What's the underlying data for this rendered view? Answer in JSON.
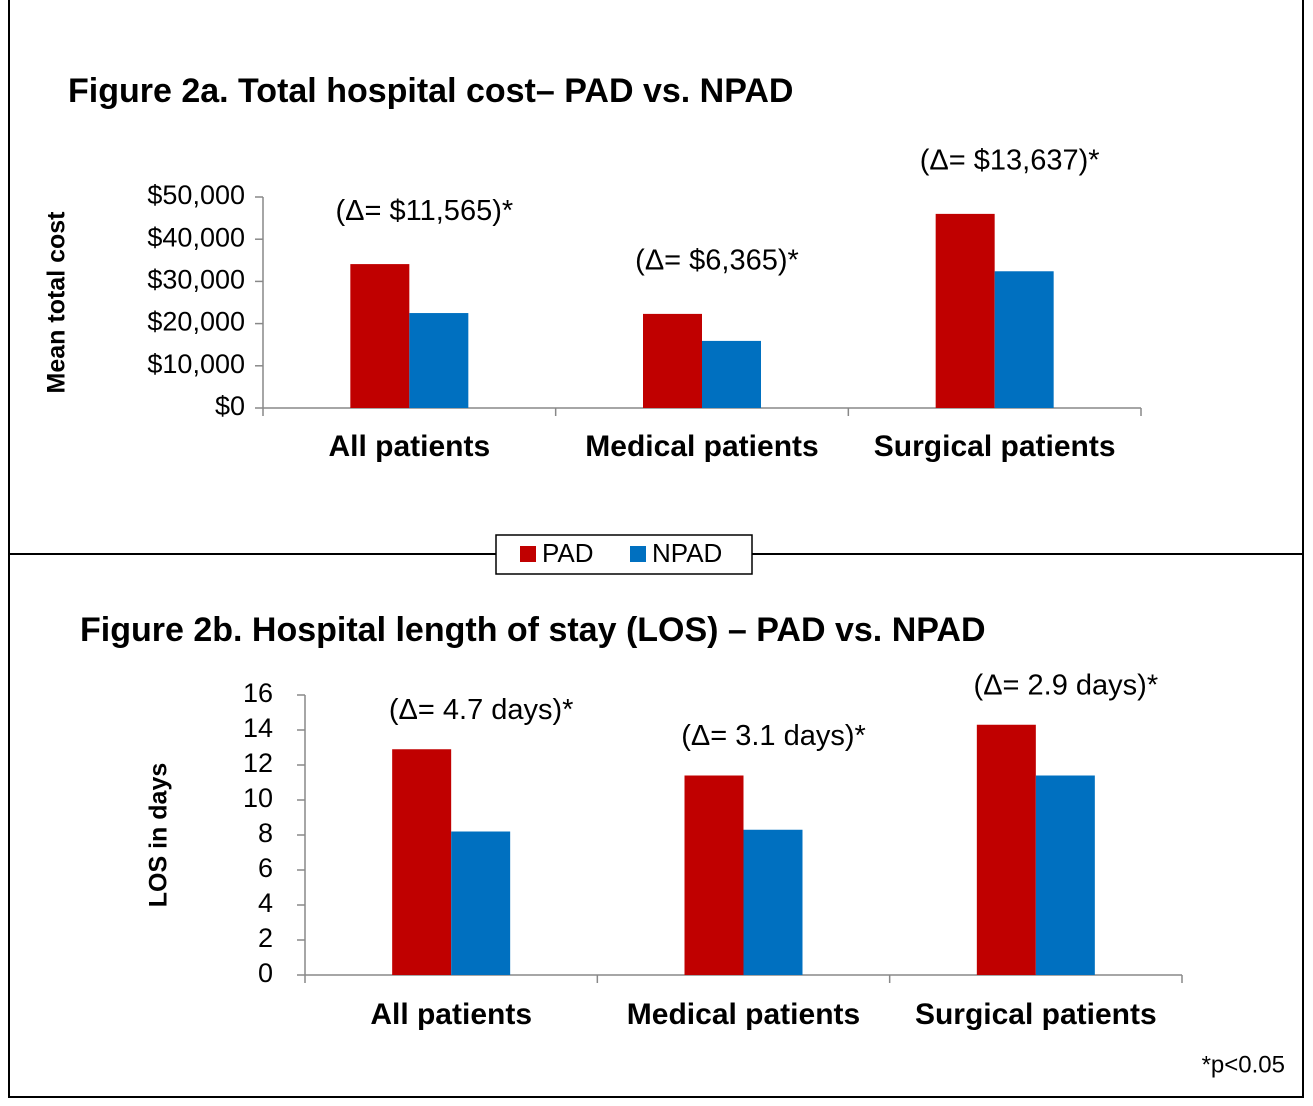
{
  "chart_data": [
    {
      "type": "bar",
      "title": "Figure 2a. Total hospital cost– PAD vs. NPAD",
      "y_label": "Mean total cost",
      "categories": [
        "All patients",
        "Medical patients",
        "Surgical patients"
      ],
      "annotations": [
        "(Δ= $11,565)*",
        "(Δ= $6,365)*",
        "(Δ= $13,637)*"
      ],
      "series": [
        {
          "name": "PAD",
          "color": "#c00000",
          "values": [
            34100,
            22300,
            46000
          ]
        },
        {
          "name": "NPAD",
          "color": "#0070c0",
          "values": [
            22500,
            15900,
            32400
          ]
        }
      ],
      "ylim": [
        0,
        50000
      ],
      "yticks": [
        {
          "value": 0,
          "label": "$0"
        },
        {
          "value": 10000,
          "label": "$10,000"
        },
        {
          "value": 20000,
          "label": "$20,000"
        },
        {
          "value": 30000,
          "label": "$30,000"
        },
        {
          "value": 40000,
          "label": "$40,000"
        },
        {
          "value": 50000,
          "label": "$50,000"
        }
      ],
      "grid": false
    },
    {
      "type": "bar",
      "title": "Figure 2b. Hospital length of stay (LOS) – PAD vs. NPAD",
      "y_label": "LOS in days",
      "categories": [
        "All patients",
        "Medical patients",
        "Surgical patients"
      ],
      "annotations": [
        "(Δ= 4.7 days)*",
        "(Δ= 3.1 days)*",
        "(Δ= 2.9 days)*"
      ],
      "series": [
        {
          "color": "#c00000",
          "values": [
            12.9,
            11.4,
            14.3
          ]
        },
        {
          "color": "#0070c0",
          "values": [
            8.2,
            8.3,
            11.4
          ]
        }
      ],
      "ylim": [
        0,
        16
      ],
      "yticks": [
        0,
        2,
        4,
        6,
        8,
        10,
        12,
        14,
        16
      ],
      "grid": false,
      "note": "*p<0.05"
    }
  ]
}
